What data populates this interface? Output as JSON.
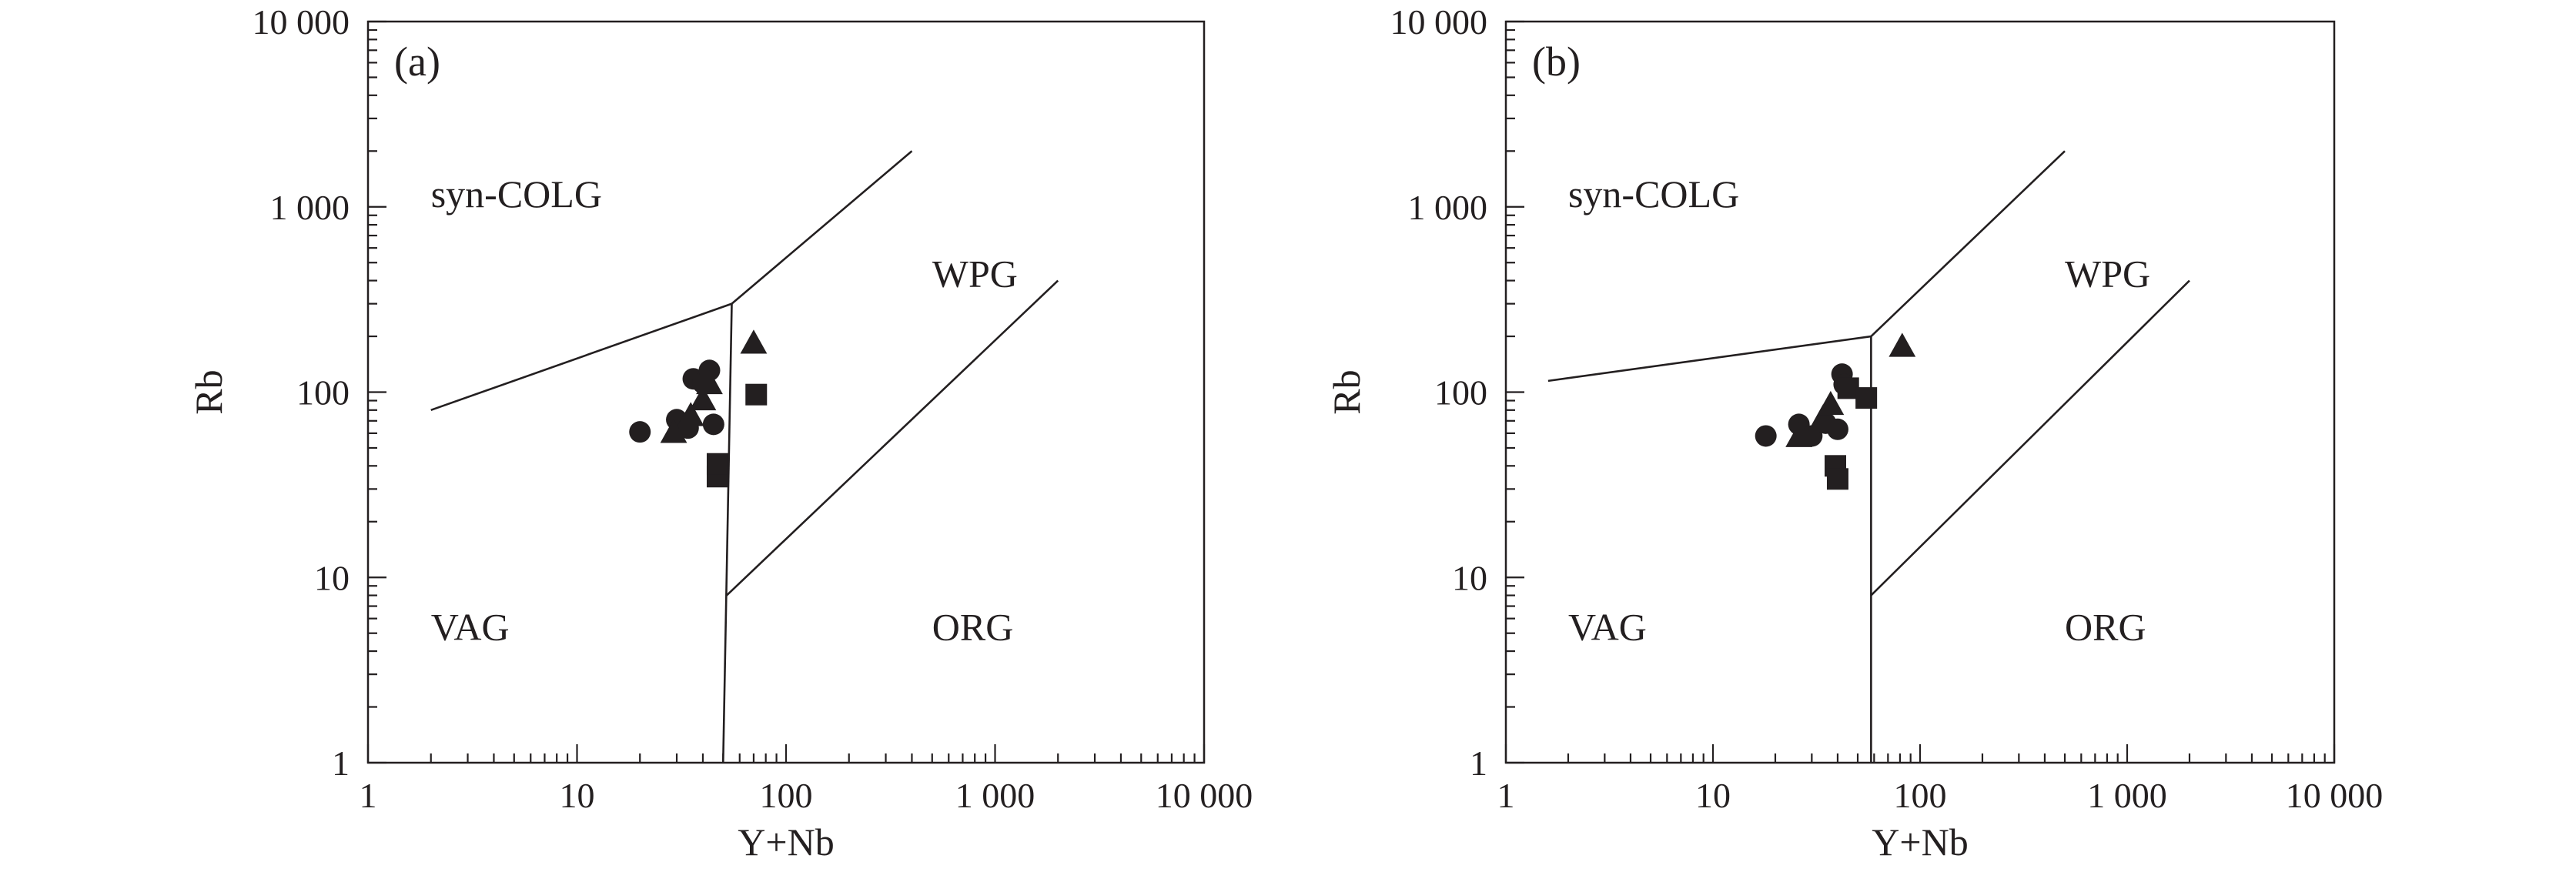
{
  "chart_data": [
    {
      "type": "scatter",
      "panel_label": "(a)",
      "xlabel": "Y+Nb",
      "ylabel": "Rb",
      "x_scale": "log",
      "y_scale": "log",
      "xlim": [
        1,
        10000
      ],
      "ylim": [
        1,
        10000
      ],
      "x_ticks": [
        1,
        10,
        100,
        1000,
        10000
      ],
      "y_ticks": [
        1,
        10,
        100,
        1000,
        10000
      ],
      "x_tick_labels": [
        "1",
        "10",
        "100",
        "1 000",
        "10 000"
      ],
      "y_tick_labels": [
        "1",
        "10",
        "100",
        "1 000",
        "10 000"
      ],
      "grid": false,
      "field_labels": [
        {
          "text": "syn-COLG",
          "x": 2.0,
          "y": 1000
        },
        {
          "text": "WPG",
          "x": 500,
          "y": 370
        },
        {
          "text": "VAG",
          "x": 2.0,
          "y": 4.6
        },
        {
          "text": "ORG",
          "x": 500,
          "y": 4.6
        }
      ],
      "boundaries": [
        {
          "x": [
            2,
            55
          ],
          "y": [
            80,
            300
          ]
        },
        {
          "x": [
            55,
            400
          ],
          "y": [
            300,
            2000
          ]
        },
        {
          "x": [
            55,
            50
          ],
          "y": [
            300,
            1
          ]
        },
        {
          "x": [
            52,
            2000
          ],
          "y": [
            8,
            400
          ]
        }
      ],
      "series": [
        {
          "marker": "circle",
          "points": [
            [
              20,
              61
            ],
            [
              30,
              71
            ],
            [
              34,
              64
            ],
            [
              36,
              118
            ],
            [
              40,
              112
            ],
            [
              43,
              131
            ],
            [
              45,
              67
            ]
          ]
        },
        {
          "marker": "triangle",
          "points": [
            [
              29,
              60
            ],
            [
              35,
              74
            ],
            [
              40,
              90
            ],
            [
              43,
              110
            ],
            [
              70,
              182
            ]
          ]
        },
        {
          "marker": "square",
          "points": [
            [
              47,
              35
            ],
            [
              47,
              41
            ],
            [
              72,
              97
            ]
          ]
        }
      ]
    },
    {
      "type": "scatter",
      "panel_label": "(b)",
      "xlabel": "Y+Nb",
      "ylabel": "Rb",
      "x_scale": "log",
      "y_scale": "log",
      "xlim": [
        1,
        10000
      ],
      "ylim": [
        1,
        10000
      ],
      "x_ticks": [
        1,
        10,
        100,
        1000,
        10000
      ],
      "y_ticks": [
        1,
        10,
        100,
        1000,
        10000
      ],
      "x_tick_labels": [
        "1",
        "10",
        "100",
        "1 000",
        "10 000"
      ],
      "y_tick_labels": [
        "1",
        "10",
        "100",
        "1 000",
        "10 000"
      ],
      "grid": false,
      "field_labels": [
        {
          "text": "syn-COLG",
          "x": 2.0,
          "y": 1000
        },
        {
          "text": "WPG",
          "x": 500,
          "y": 370
        },
        {
          "text": "VAG",
          "x": 2.0,
          "y": 4.6
        },
        {
          "text": "ORG",
          "x": 500,
          "y": 4.6
        }
      ],
      "boundaries": [
        {
          "x": [
            1.6,
            58
          ],
          "y": [
            115,
            200
          ]
        },
        {
          "x": [
            58,
            500
          ],
          "y": [
            200,
            2000
          ]
        },
        {
          "x": [
            58,
            58
          ],
          "y": [
            200,
            1
          ]
        },
        {
          "x": [
            58,
            2000
          ],
          "y": [
            8,
            400
          ]
        }
      ],
      "series": [
        {
          "marker": "circle",
          "points": [
            [
              18,
              58
            ],
            [
              26,
              67
            ],
            [
              30,
              58
            ],
            [
              35,
              68
            ],
            [
              40,
              63
            ],
            [
              42,
              125
            ],
            [
              43,
              110
            ]
          ]
        },
        {
          "marker": "triangle",
          "points": [
            [
              26,
              57
            ],
            [
              34,
              72
            ],
            [
              37,
              85
            ],
            [
              82,
              175
            ]
          ]
        },
        {
          "marker": "square",
          "points": [
            [
              39,
              40
            ],
            [
              40,
              34
            ],
            [
              45,
              105
            ],
            [
              55,
              93
            ]
          ]
        }
      ]
    }
  ]
}
